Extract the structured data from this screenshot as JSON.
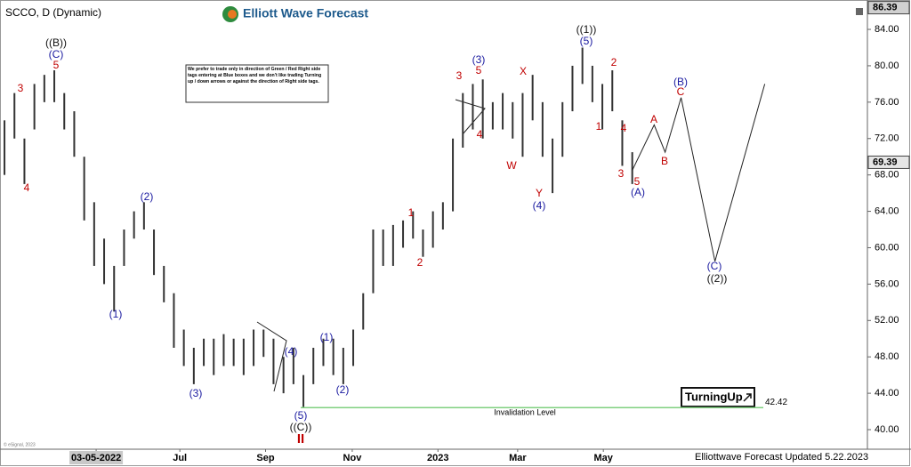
{
  "chart_data": {
    "type": "ohlc",
    "title": "SCCO, D (Dynamic)",
    "brand": "Elliott Wave Forecast",
    "note": "We prefer to trade only in direction of Green / Red Right side tags entering at Blue boxes and we don't like trading Turning up / down arrows or against the direction of Right side tags.",
    "badge": "TurningUp",
    "footer": "Elliottwave Forecast Updated 5.22.2023",
    "copyright": "© eSignal, 2023",
    "color": "#333333",
    "high": [
      74,
      77,
      72,
      78,
      79,
      79.5,
      77,
      75,
      70,
      65,
      61,
      58,
      62,
      64,
      65,
      62,
      58,
      55,
      51,
      49,
      50,
      50,
      50.5,
      50,
      50,
      51,
      51,
      50,
      48,
      49,
      46,
      49,
      50,
      50,
      49,
      51,
      55,
      62,
      62,
      62.5,
      63,
      64,
      62,
      64,
      65,
      72,
      77,
      78,
      78.5,
      76,
      77,
      76,
      77,
      79,
      76,
      72,
      76,
      80,
      82,
      80,
      78,
      79.5,
      74,
      70.5
    ],
    "low": [
      68,
      72,
      67,
      73,
      76,
      76,
      73,
      70,
      63,
      58,
      56,
      53,
      58,
      61,
      62,
      57,
      54,
      49,
      47,
      45,
      47,
      46,
      47,
      47,
      46,
      47,
      48,
      45,
      44,
      45,
      42.5,
      45,
      47,
      46,
      45,
      47,
      51,
      55,
      58,
      58,
      60,
      61,
      59,
      60,
      62,
      64,
      71,
      73,
      72,
      73,
      73,
      72,
      70,
      74,
      70,
      66,
      70,
      75,
      78,
      76,
      73,
      75,
      69,
      67
    ],
    "projection": {
      "color": "#222222",
      "x": [
        63,
        65.2,
        66.3,
        67.9,
        71.3,
        76.3
      ],
      "values": [
        68.5,
        73.5,
        70.5,
        76.5,
        58.5,
        78
      ]
    },
    "ylim": [
      37.85,
      87.23
    ],
    "yticks": [
      {
        "value": 40,
        "label": "40.00"
      },
      {
        "value": 44,
        "label": "44.00"
      },
      {
        "value": 48,
        "label": "48.00"
      },
      {
        "value": 52,
        "label": "52.00"
      },
      {
        "value": 56,
        "label": "56.00"
      },
      {
        "value": 60,
        "label": "60.00"
      },
      {
        "value": 64,
        "label": "64.00"
      },
      {
        "value": 68,
        "label": "68.00"
      },
      {
        "value": 72,
        "label": "72.00"
      },
      {
        "value": 76,
        "label": "76.00"
      },
      {
        "value": 80,
        "label": "80.00"
      },
      {
        "value": 84,
        "label": "84.00"
      }
    ],
    "xlim": [
      -0.45,
      86.6
    ],
    "xticks": [
      {
        "value": 9.2,
        "label": "03-05-2022"
      },
      {
        "value": 17.6,
        "label": "Jul"
      },
      {
        "value": 26.2,
        "label": "Sep"
      },
      {
        "value": 34.9,
        "label": "Nov"
      },
      {
        "value": 43.5,
        "label": "2023"
      },
      {
        "value": 51.5,
        "label": "Mar"
      },
      {
        "value": 60.1,
        "label": "May"
      }
    ],
    "price_markers": [
      86.39,
      69.39
    ],
    "invalidation": {
      "value": 42.42,
      "label": "Invalidation Level",
      "color": "#7fd07f"
    },
    "annotations": [
      {
        "text": "((B))",
        "color": "#111"
      },
      {
        "text": "(C)",
        "color": "#1a1aa0"
      },
      {
        "text": "5",
        "color": "#c00000"
      },
      {
        "text": "3",
        "color": "#c00000"
      },
      {
        "text": "4",
        "color": "#c00000"
      },
      {
        "text": "(2)",
        "color": "#1a1aa0"
      },
      {
        "text": "(1)",
        "color": "#1a1aa0"
      },
      {
        "text": "(3)",
        "color": "#1a1aa0"
      },
      {
        "text": "(4)",
        "color": "#1a1aa0"
      },
      {
        "text": "(5)",
        "color": "#1a1aa0"
      },
      {
        "text": "((C))",
        "color": "#111"
      },
      {
        "text": "II",
        "color": "#c00000"
      },
      {
        "text": "(1)",
        "color": "#1a1aa0"
      },
      {
        "text": "(2)",
        "color": "#1a1aa0"
      },
      {
        "text": "1",
        "color": "#c00000"
      },
      {
        "text": "2",
        "color": "#c00000"
      },
      {
        "text": "3",
        "color": "#c00000"
      },
      {
        "text": "(3)",
        "color": "#1a1aa0"
      },
      {
        "text": "5",
        "color": "#c00000"
      },
      {
        "text": "4",
        "color": "#c00000"
      },
      {
        "text": "W",
        "color": "#c00000"
      },
      {
        "text": "X",
        "color": "#c00000"
      },
      {
        "text": "Y",
        "color": "#c00000"
      },
      {
        "text": "(4)",
        "color": "#1a1aa0"
      },
      {
        "text": "((1))",
        "color": "#111"
      },
      {
        "text": "(5)",
        "color": "#1a1aa0"
      },
      {
        "text": "1",
        "color": "#c00000"
      },
      {
        "text": "2",
        "color": "#c00000"
      },
      {
        "text": "4",
        "color": "#c00000"
      },
      {
        "text": "3",
        "color": "#c00000"
      },
      {
        "text": "5",
        "color": "#c00000"
      },
      {
        "text": "(A)",
        "color": "#1a1aa0"
      },
      {
        "text": "A",
        "color": "#c00000"
      },
      {
        "text": "B",
        "color": "#c00000"
      },
      {
        "text": "(B)",
        "color": "#1a1aa0"
      },
      {
        "text": "C",
        "color": "#c00000"
      },
      {
        "text": "(C)",
        "color": "#1a1aa0"
      },
      {
        "text": "((2))",
        "color": "#111"
      }
    ]
  }
}
